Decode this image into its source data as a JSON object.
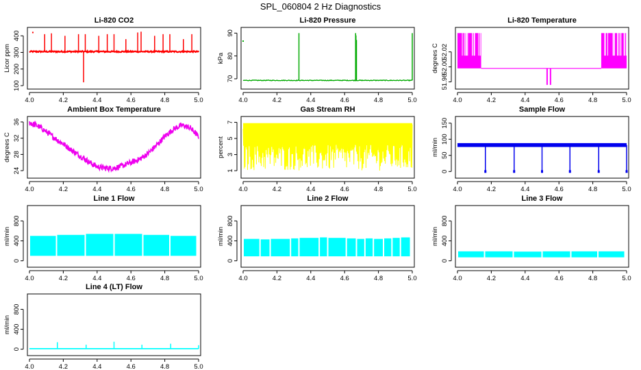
{
  "page_title": "SPL_060804  2 Hz Diagnostics",
  "chart_data": [
    {
      "id": "co2",
      "type": "line",
      "title": "Li-820 CO2",
      "xlabel": "",
      "ylabel": "Licor ppm",
      "color": "#ff0000",
      "xlim": [
        4.0,
        5.0
      ],
      "ylim": [
        100,
        430
      ],
      "xticks": [
        "4.0",
        "4.2",
        "4.4",
        "4.6",
        "4.8",
        "5.0"
      ],
      "yticks": [
        "100",
        "200",
        "300",
        "400"
      ],
      "series": [
        {
          "name": "Li-820 CO2",
          "baseline": 305,
          "noise": 8,
          "band": 3,
          "spikes": [
            {
              "x": 4.02,
              "y": 420,
              "dot": true
            },
            {
              "x": 4.09,
              "y": 410
            },
            {
              "x": 4.13,
              "y": 415
            },
            {
              "x": 4.21,
              "y": 400
            },
            {
              "x": 4.29,
              "y": 410
            },
            {
              "x": 4.32,
              "y": 120
            },
            {
              "x": 4.33,
              "y": 410
            },
            {
              "x": 4.41,
              "y": 400
            },
            {
              "x": 4.46,
              "y": 410
            },
            {
              "x": 4.5,
              "y": 410
            },
            {
              "x": 4.57,
              "y": 380
            },
            {
              "x": 4.64,
              "y": 420
            },
            {
              "x": 4.66,
              "y": 425
            },
            {
              "x": 4.74,
              "y": 400
            },
            {
              "x": 4.79,
              "y": 410
            },
            {
              "x": 4.83,
              "y": 410
            },
            {
              "x": 4.91,
              "y": 380
            },
            {
              "x": 4.96,
              "y": 410
            },
            {
              "x": 5.0,
              "y": 310
            }
          ]
        }
      ]
    },
    {
      "id": "pressure",
      "type": "line",
      "title": "Li-820 Pressure",
      "xlabel": "",
      "ylabel": "kPa",
      "color": "#00aa00",
      "xlim": [
        4.0,
        5.0
      ],
      "ylim": [
        67,
        91
      ],
      "xticks": [
        "4.0",
        "4.2",
        "4.4",
        "4.6",
        "4.8",
        "5.0"
      ],
      "yticks": [
        "70",
        "80",
        "90"
      ],
      "series": [
        {
          "name": "Li-820 Pressure",
          "baseline": 69.3,
          "noise": 0.3,
          "band": 0,
          "spikes": [
            {
              "x": 4.0,
              "y": 86.5,
              "dot": true
            },
            {
              "x": 4.33,
              "y": 90
            },
            {
              "x": 4.665,
              "y": 90
            },
            {
              "x": 4.667,
              "y": 89
            },
            {
              "x": 4.67,
              "y": 87
            },
            {
              "x": 5.0,
              "y": 90
            }
          ]
        }
      ]
    },
    {
      "id": "temperature",
      "type": "line",
      "title": "Li-820 Temperature",
      "xlabel": "",
      "ylabel": "degrees C",
      "color": "#ff00ff",
      "xlim": [
        4.0,
        5.0
      ],
      "ylim": [
        51.975,
        52.048
      ],
      "xticks": [
        "4.0",
        "4.2",
        "4.4",
        "4.6",
        "4.8",
        "5.0"
      ],
      "yticks": [
        "51.98",
        "52.00",
        "52.02"
      ],
      "series": [
        {
          "name": "Li-820 Temperature",
          "baseline": 51.998,
          "segments": [
            [
              4.0,
              4.14
            ],
            [
              4.85,
              5.0
            ]
          ],
          "high": 52.045,
          "mid": 52.015,
          "dips": [
            {
              "x": 4.53,
              "y": 51.976
            },
            {
              "x": 4.55,
              "y": 51.976
            }
          ]
        }
      ]
    },
    {
      "id": "box_temp",
      "type": "line",
      "title": "Ambient Box Temperature",
      "xlabel": "",
      "ylabel": "degrees C",
      "color": "#ee00ee",
      "xlim": [
        4.0,
        5.0
      ],
      "ylim": [
        23,
        36.5
      ],
      "xticks": [
        "4.0",
        "4.2",
        "4.4",
        "4.6",
        "4.8",
        "5.0"
      ],
      "yticks": [
        "24",
        "28",
        "32",
        "36"
      ],
      "series": [
        {
          "name": "Ambient Box Temperature",
          "x": [
            4.0,
            4.05,
            4.1,
            4.15,
            4.2,
            4.25,
            4.3,
            4.35,
            4.4,
            4.45,
            4.5,
            4.55,
            4.6,
            4.65,
            4.7,
            4.75,
            4.8,
            4.85,
            4.9,
            4.95,
            5.0
          ],
          "y": [
            35.8,
            35.0,
            33.6,
            32.0,
            30.6,
            29.0,
            27.6,
            26.2,
            25.0,
            24.6,
            24.6,
            25.2,
            26.0,
            26.8,
            28.2,
            30.2,
            32.4,
            34.2,
            35.2,
            34.6,
            32.4
          ],
          "noise": 0.7
        }
      ]
    },
    {
      "id": "gas_rh",
      "type": "line",
      "title": "Gas Stream RH",
      "xlabel": "",
      "ylabel": "percent",
      "color": "#ffff00",
      "xlim": [
        4.0,
        5.0
      ],
      "ylim": [
        0.5,
        7.3
      ],
      "xticks": [
        "4.0",
        "4.2",
        "4.4",
        "4.6",
        "4.8",
        "5.0"
      ],
      "yticks": [
        "1",
        "3",
        "5",
        "7"
      ],
      "series": [
        {
          "name": "Gas Stream RH",
          "baseline": 6.2,
          "high": 6.9,
          "low": 1.0
        }
      ]
    },
    {
      "id": "sample_flow",
      "type": "line",
      "title": "Sample Flow",
      "xlabel": "",
      "ylabel": "ml/min",
      "color": "#0000ee",
      "xlim": [
        4.0,
        5.0
      ],
      "ylim": [
        -10,
        160
      ],
      "xticks": [
        "4.0",
        "4.2",
        "4.4",
        "4.6",
        "4.8",
        "5.0"
      ],
      "yticks": [
        "0",
        "50",
        "100",
        "150"
      ],
      "series": [
        {
          "name": "Sample Flow",
          "baseline": 82,
          "band": 6,
          "dips": [
            4.165,
            4.335,
            4.5,
            4.665,
            4.835,
            5.0
          ],
          "dip_y": 0
        }
      ]
    },
    {
      "id": "line1",
      "type": "line",
      "title": "Line 1 Flow",
      "xlabel": "",
      "ylabel": "ml/min",
      "color": "#00ffff",
      "xlim": [
        4.0,
        5.0
      ],
      "ylim": [
        -60,
        1040
      ],
      "xticks": [
        "4.0",
        "4.2",
        "4.4",
        "4.6",
        "4.8",
        "5.0"
      ],
      "yticks": [
        "0",
        "400",
        "800"
      ],
      "series": [
        {
          "name": "Line 1 Flow",
          "low": 100,
          "high": 520,
          "x": [
            4.0,
            4.16,
            4.33,
            4.5,
            4.67,
            4.83,
            4.99
          ],
          "tops": [
            500,
            520,
            540,
            540,
            520,
            500
          ]
        }
      ]
    },
    {
      "id": "line2",
      "type": "line",
      "title": "Line 2 Flow",
      "xlabel": "",
      "ylabel": "ml/min",
      "color": "#00ffff",
      "xlim": [
        4.0,
        5.0
      ],
      "ylim": [
        -60,
        1040
      ],
      "xticks": [
        "4.0",
        "4.2",
        "4.4",
        "4.6",
        "4.8",
        "5.0"
      ],
      "yticks": [
        "0",
        "400",
        "800"
      ],
      "series": [
        {
          "name": "Line 2 Flow",
          "low": 90,
          "x": [
            4.0,
            4.1,
            4.16,
            4.28,
            4.33,
            4.45,
            4.5,
            4.61,
            4.67,
            4.72,
            4.77,
            4.83,
            4.88,
            4.93,
            4.99
          ],
          "tops": [
            440,
            430,
            440,
            450,
            460,
            470,
            460,
            450,
            440,
            450,
            440,
            450,
            460,
            470
          ]
        }
      ]
    },
    {
      "id": "line3",
      "type": "line",
      "title": "Line 3 Flow",
      "xlabel": "",
      "ylabel": "ml/min",
      "color": "#00ffff",
      "xlim": [
        4.0,
        5.0
      ],
      "ylim": [
        -60,
        1040
      ],
      "xticks": [
        "4.0",
        "4.2",
        "4.4",
        "4.6",
        "4.8",
        "5.0"
      ],
      "yticks": [
        "0",
        "400",
        "800"
      ],
      "series": [
        {
          "name": "Line 3 Flow",
          "low": 70,
          "x": [
            4.0,
            4.16,
            4.33,
            4.5,
            4.67,
            4.83,
            4.99
          ],
          "tops": [
            190,
            190,
            185,
            190,
            190,
            190
          ]
        }
      ]
    },
    {
      "id": "line4",
      "type": "line",
      "title": "Line 4 (LT) Flow",
      "xlabel": "",
      "ylabel": "ml/min",
      "color": "#00ffff",
      "xlim": [
        4.0,
        5.0
      ],
      "ylim": [
        -60,
        1040
      ],
      "xticks": [
        "4.0",
        "4.2",
        "4.4",
        "4.6",
        "4.8",
        "5.0"
      ],
      "yticks": [
        "0",
        "400",
        "800"
      ],
      "series": [
        {
          "name": "Line 4 (LT) Flow",
          "baseline": 10,
          "spikes": [
            {
              "x": 4.165,
              "y": 140
            },
            {
              "x": 4.335,
              "y": 90
            },
            {
              "x": 4.5,
              "y": 150
            },
            {
              "x": 4.665,
              "y": 90
            },
            {
              "x": 4.835,
              "y": 110
            },
            {
              "x": 5.0,
              "y": 80
            }
          ]
        }
      ]
    }
  ]
}
